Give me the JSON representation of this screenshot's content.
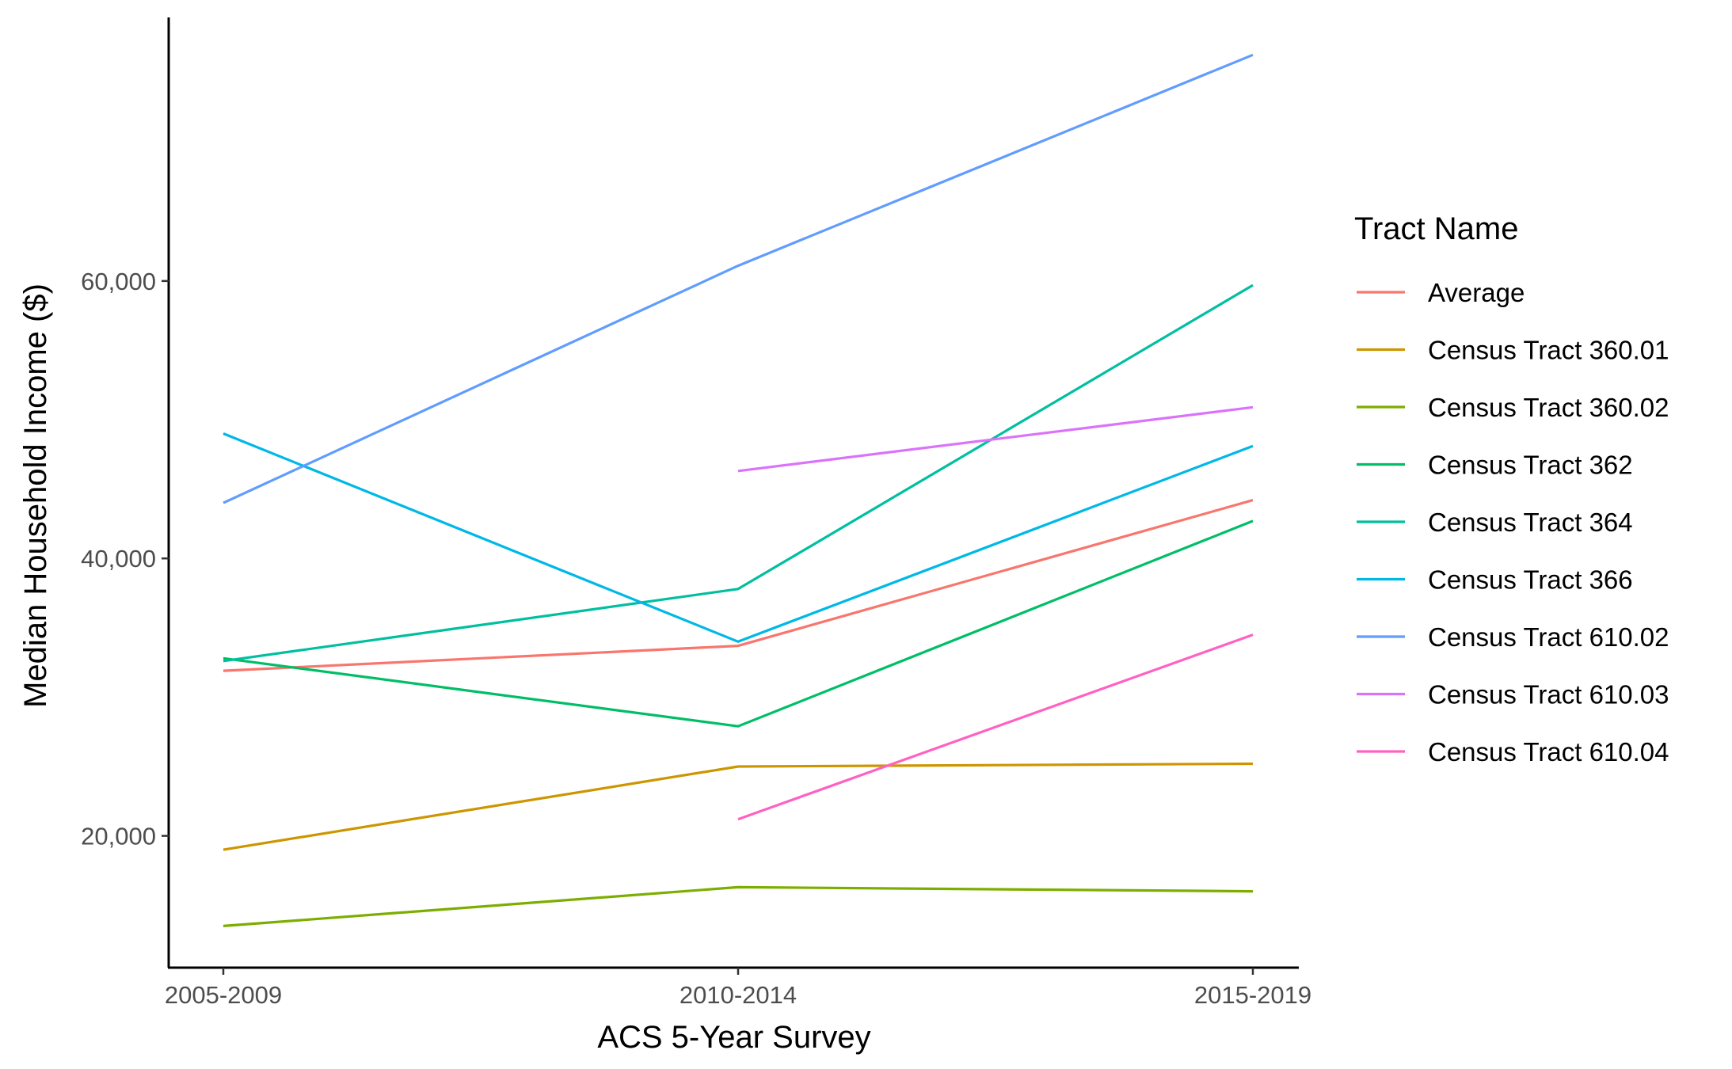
{
  "chart_data": {
    "type": "line",
    "title": "",
    "xlabel": "ACS 5-Year Survey",
    "ylabel": "Median Household Income ($)",
    "categories": [
      "2005-2009",
      "2010-2014",
      "2015-2019"
    ],
    "ylim": [
      10500,
      79000
    ],
    "y_ticks": [
      20000,
      40000,
      60000
    ],
    "y_tick_labels": [
      "20,000",
      "40,000",
      "60,000"
    ],
    "grid": false,
    "legend": {
      "title": "Tract Name",
      "position": "right"
    },
    "series": [
      {
        "name": "Average",
        "color": "#F8766D",
        "values": [
          31900,
          33700,
          44200
        ]
      },
      {
        "name": "Census Tract 360.01",
        "color": "#CD9600",
        "values": [
          19000,
          25000,
          25200
        ]
      },
      {
        "name": "Census Tract 360.02",
        "color": "#7CAE00",
        "values": [
          13500,
          16300,
          16000
        ]
      },
      {
        "name": "Census Tract 362",
        "color": "#00BE67",
        "values": [
          32800,
          27900,
          42700
        ]
      },
      {
        "name": "Census Tract 364",
        "color": "#00BFA0",
        "values": [
          32600,
          37800,
          59700
        ]
      },
      {
        "name": "Census Tract 366",
        "color": "#00B8E7",
        "values": [
          49000,
          34000,
          48100
        ]
      },
      {
        "name": "Census Tract 610.02",
        "color": "#619CFF",
        "values": [
          44000,
          61100,
          76300
        ]
      },
      {
        "name": "Census Tract 610.03",
        "color": "#DB72FB",
        "values": [
          null,
          46300,
          50900
        ]
      },
      {
        "name": "Census Tract 610.04",
        "color": "#FF61C3",
        "values": [
          null,
          21200,
          34500
        ]
      }
    ]
  }
}
